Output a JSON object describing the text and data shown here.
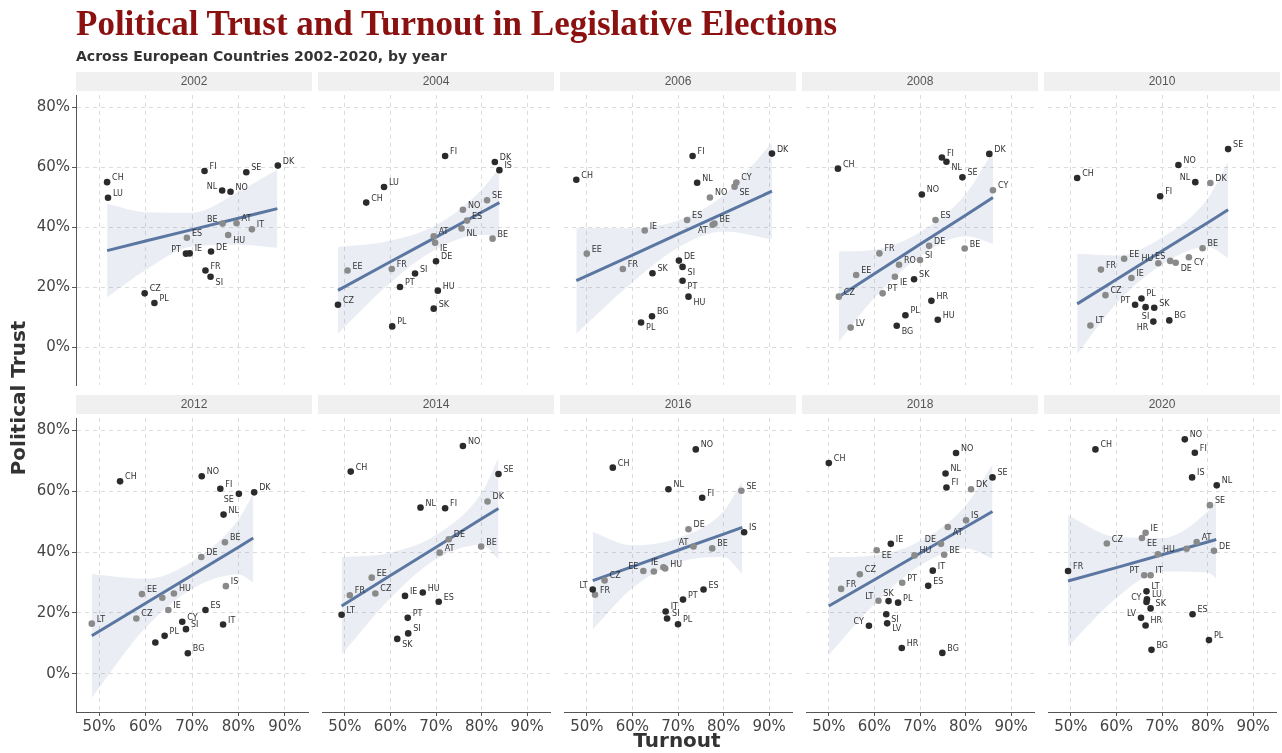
{
  "chart_data": [
    {
      "type": "other",
      "title": "Political Trust and Turnout in Legislative Elections",
      "subtitle": "Across European Countries 2002-2020, by year",
      "xlabel": "Turnout",
      "ylabel": "Political Trust"
    },
    {
      "type": "scatter",
      "title": "2002",
      "xlim": [
        45,
        95
      ],
      "ylim": [
        -12.5,
        84
      ],
      "xticks": [
        {
          "value": 50,
          "label": null
        },
        {
          "value": 60,
          "label": null
        },
        {
          "value": 70,
          "label": null
        },
        {
          "value": 80,
          "label": null
        },
        {
          "value": 90,
          "label": null
        }
      ],
      "yticks": [
        {
          "value": 0,
          "label": "0%"
        },
        {
          "value": 20,
          "label": "20%"
        },
        {
          "value": 40,
          "label": "40%"
        },
        {
          "value": 60,
          "label": "60%"
        },
        {
          "value": 80,
          "label": "80%"
        }
      ],
      "grid": true,
      "tick_labels": "y",
      "series": [
        {
          "type": "line",
          "color": "#5b77a1",
          "x": [
            51.7,
            60,
            70,
            80,
            88.4
          ],
          "values": [
            32.2,
            35.4,
            39.2,
            43.0,
            46.2
          ],
          "lower": [
            16.7,
            25.8,
            33.6,
            34.2,
            33.2
          ],
          "upper": [
            47.7,
            45.0,
            44.8,
            51.8,
            59.2
          ]
        },
        {
          "type": "scatter",
          "marker": "circle",
          "color": "#2b2b2b",
          "x": [
            51.7,
            51.9,
            72.7,
            81.7,
            88.5,
            76.5,
            78.3,
            68.7,
            69.5,
            74.1,
            72.9,
            74.0,
            59.8,
            61.9
          ],
          "values": [
            55.0,
            49.8,
            58.7,
            58.3,
            60.5,
            52.2,
            51.8,
            31.2,
            31.3,
            31.9,
            25.6,
            23.5,
            18.0,
            14.8
          ],
          "value_labels": [
            "CH",
            "LU",
            "FI",
            "SE",
            "DK",
            "NL",
            "NO",
            "PT",
            "IE",
            "DE",
            "FR",
            "SI",
            "CZ",
            "PL"
          ]
        },
        {
          "type": "scatter",
          "marker": "circle",
          "color": "#8a8a8a",
          "x": [
            76.6,
            79.6,
            82.9,
            77.8,
            68.9
          ],
          "values": [
            41.2,
            41.3,
            39.3,
            37.4,
            36.5
          ],
          "value_labels": [
            "BE",
            "AT",
            "IT",
            "HU",
            "ES"
          ]
        }
      ]
    },
    {
      "type": "scatter",
      "title": "2004",
      "xlim": [
        45,
        95
      ],
      "ylim": [
        -12.5,
        84
      ],
      "xticks": [
        {
          "value": 50,
          "label": null
        },
        {
          "value": 60,
          "label": null
        },
        {
          "value": 70,
          "label": null
        },
        {
          "value": 80,
          "label": null
        },
        {
          "value": 90,
          "label": null
        }
      ],
      "yticks": [
        {
          "value": 0,
          "label": null
        },
        {
          "value": 20,
          "label": null
        },
        {
          "value": 40,
          "label": null
        },
        {
          "value": 60,
          "label": null
        },
        {
          "value": 80,
          "label": null
        }
      ],
      "grid": true,
      "tick_labels": false,
      "series": [
        {
          "type": "line",
          "color": "#5b77a1",
          "x": [
            48.5,
            60,
            70,
            80,
            83.9
          ],
          "values": [
            19.0,
            28.5,
            36.7,
            45.0,
            48.2
          ],
          "lower": [
            4.6,
            21.5,
            32.7,
            37.5,
            36.6
          ],
          "upper": [
            33.4,
            35.5,
            40.7,
            52.5,
            59.8
          ]
        },
        {
          "type": "scatter",
          "marker": "circle",
          "color": "#2b2b2b",
          "x": [
            72.0,
            82.9,
            83.9,
            58.6,
            54.7,
            70.0,
            65.4,
            62.1,
            70.4,
            48.5,
            69.5,
            60.4
          ],
          "values": [
            63.7,
            61.7,
            59.0,
            53.4,
            48.2,
            28.7,
            24.6,
            20.1,
            18.9,
            14.2,
            12.9,
            7.0
          ],
          "value_labels": [
            "FI",
            "DK",
            "IS",
            "LU",
            "CH",
            "DE",
            "SI",
            "PT",
            "HU",
            "CZ",
            "SK",
            "PL"
          ]
        },
        {
          "type": "scatter",
          "marker": "circle",
          "color": "#8a8a8a",
          "x": [
            81.2,
            75.9,
            76.8,
            75.6,
            69.5,
            69.8,
            82.4,
            60.3,
            50.6
          ],
          "values": [
            49.0,
            45.8,
            42.2,
            39.6,
            37.0,
            34.8,
            36.2,
            26.1,
            25.6
          ],
          "value_labels": [
            "SE",
            "NO",
            "ES",
            "NL",
            "AT",
            "IE",
            "BE",
            "FR",
            "EE"
          ]
        }
      ]
    },
    {
      "type": "scatter",
      "title": "2006",
      "xlim": [
        45,
        95
      ],
      "ylim": [
        -12.5,
        84
      ],
      "xticks": [
        {
          "value": 50,
          "label": null
        },
        {
          "value": 60,
          "label": null
        },
        {
          "value": 70,
          "label": null
        },
        {
          "value": 80,
          "label": null
        },
        {
          "value": 90,
          "label": null
        }
      ],
      "yticks": [
        {
          "value": 0,
          "label": null
        },
        {
          "value": 20,
          "label": null
        },
        {
          "value": 40,
          "label": null
        },
        {
          "value": 60,
          "label": null
        },
        {
          "value": 80,
          "label": null
        }
      ],
      "grid": true,
      "tick_labels": false,
      "series": [
        {
          "type": "line",
          "color": "#5b77a1",
          "x": [
            47.7,
            60,
            70,
            80,
            90.6
          ],
          "values": [
            22.2,
            30.7,
            37.7,
            44.6,
            52.0
          ],
          "lower": [
            4.6,
            21.7,
            33.2,
            38.6,
            36.0
          ],
          "upper": [
            39.8,
            39.7,
            42.2,
            50.6,
            68.0
          ]
        },
        {
          "type": "scatter",
          "marker": "circle",
          "color": "#2b2b2b",
          "x": [
            47.7,
            73.2,
            90.6,
            74.2,
            64.4,
            70.2,
            71.0,
            71.0,
            72.3,
            64.3,
            61.9
          ],
          "values": [
            55.8,
            63.7,
            64.5,
            54.8,
            24.7,
            28.9,
            26.8,
            22.2,
            16.9,
            10.4,
            8.3
          ],
          "value_labels": [
            "CH",
            "FI",
            "DK",
            "NL",
            "SK",
            "DE",
            "SI",
            "PT",
            "HU",
            "BG",
            "PL"
          ]
        },
        {
          "type": "scatter",
          "marker": "circle",
          "color": "#8a8a8a",
          "x": [
            82.8,
            82.4,
            77.0,
            72.0,
            77.6,
            78.0,
            62.7,
            50.0,
            57.9
          ],
          "values": [
            54.9,
            53.5,
            49.9,
            42.4,
            40.8,
            41.2,
            38.9,
            31.2,
            26.1
          ],
          "value_labels": [
            "CY",
            "SE",
            "NO",
            "ES",
            "AT",
            "BE",
            "IE",
            "EE",
            "FR"
          ]
        }
      ]
    },
    {
      "type": "scatter",
      "title": "2008",
      "xlim": [
        45,
        95
      ],
      "ylim": [
        -12.5,
        84
      ],
      "xticks": [
        {
          "value": 50,
          "label": null
        },
        {
          "value": 60,
          "label": null
        },
        {
          "value": 70,
          "label": null
        },
        {
          "value": 80,
          "label": null
        },
        {
          "value": 90,
          "label": null
        }
      ],
      "yticks": [
        {
          "value": 0,
          "label": null
        },
        {
          "value": 20,
          "label": null
        },
        {
          "value": 40,
          "label": null
        },
        {
          "value": 60,
          "label": null
        },
        {
          "value": 80,
          "label": null
        }
      ],
      "grid": true,
      "tick_labels": false,
      "series": [
        {
          "type": "line",
          "color": "#5b77a1",
          "x": [
            52.2,
            60,
            70,
            80,
            86.0
          ],
          "values": [
            16.9,
            24.5,
            34.3,
            44.0,
            49.9
          ],
          "lower": [
            1.9,
            16.5,
            30.3,
            37.0,
            34.5
          ],
          "upper": [
            31.9,
            32.5,
            38.3,
            51.0,
            65.3
          ]
        },
        {
          "type": "scatter",
          "marker": "circle",
          "color": "#2b2b2b",
          "x": [
            52.0,
            74.8,
            75.8,
            85.2,
            79.3,
            70.4,
            68.7,
            72.5,
            73.9,
            66.8,
            64.9
          ],
          "values": [
            59.5,
            63.2,
            61.8,
            64.4,
            56.6,
            50.9,
            22.7,
            15.5,
            9.2,
            10.7,
            7.2
          ],
          "value_labels": [
            "CH",
            "FI",
            "NL",
            "DK",
            "SE",
            "NO",
            "SK",
            "HR",
            "HU",
            "PL",
            "BG"
          ]
        },
        {
          "type": "scatter",
          "marker": "circle",
          "color": "#8a8a8a",
          "x": [
            86.0,
            73.4,
            72.0,
            79.8,
            61.1,
            70.0,
            65.4,
            64.5,
            56.0,
            52.2,
            61.8,
            54.8
          ],
          "values": [
            52.3,
            42.4,
            33.8,
            32.9,
            31.3,
            29.1,
            27.5,
            23.5,
            24.1,
            16.9,
            18.0,
            6.6
          ],
          "value_labels": [
            "CY",
            "ES",
            "DE",
            "BE",
            "FR",
            "SI",
            "RO",
            "IE",
            "EE",
            "CZ",
            "PT",
            "LV"
          ]
        }
      ]
    },
    {
      "type": "scatter",
      "title": "2010",
      "xlim": [
        45,
        95
      ],
      "ylim": [
        -12.5,
        84
      ],
      "xticks": [
        {
          "value": 50,
          "label": null
        },
        {
          "value": 60,
          "label": null
        },
        {
          "value": 70,
          "label": null
        },
        {
          "value": 80,
          "label": null
        },
        {
          "value": 90,
          "label": null
        }
      ],
      "yticks": [
        {
          "value": 0,
          "label": null
        },
        {
          "value": 20,
          "label": null
        },
        {
          "value": 40,
          "label": null
        },
        {
          "value": 60,
          "label": null
        },
        {
          "value": 80,
          "label": null
        }
      ],
      "grid": true,
      "tick_labels": false,
      "series": [
        {
          "type": "line",
          "color": "#5b77a1",
          "x": [
            51.4,
            60,
            70,
            80,
            84.5
          ],
          "values": [
            14.5,
            22.6,
            32.1,
            41.5,
            45.8
          ],
          "lower": [
            -2.2,
            14.6,
            27.6,
            33.5,
            29.8
          ],
          "upper": [
            31.2,
            30.6,
            36.6,
            49.5,
            61.8
          ]
        },
        {
          "type": "scatter",
          "marker": "circle",
          "color": "#2b2b2b",
          "x": [
            51.4,
            84.5,
            73.6,
            77.3,
            69.6,
            65.5,
            64.1,
            66.4,
            68.3,
            68.1,
            71.6
          ],
          "values": [
            56.4,
            66.0,
            60.7,
            55.0,
            50.3,
            16.3,
            14.2,
            13.4,
            13.2,
            8.6,
            9.0
          ],
          "value_labels": [
            "CH",
            "SE",
            "NO",
            "NL",
            "FI",
            "PL",
            "PT",
            "SI",
            "SK",
            "HR",
            "BG"
          ]
        },
        {
          "type": "scatter",
          "marker": "circle",
          "color": "#8a8a8a",
          "x": [
            80.6,
            78.9,
            75.9,
            69.2,
            71.8,
            73.0,
            61.7,
            56.6,
            63.3,
            57.6,
            54.3
          ],
          "values": [
            54.7,
            33.0,
            30.0,
            28.0,
            28.8,
            28.2,
            29.5,
            25.9,
            23.1,
            17.4,
            7.3
          ],
          "value_labels": [
            "DK",
            "BE",
            "CY",
            "HU",
            "ES",
            "DE",
            "EE",
            "FR",
            "IE",
            "CZ",
            "LT"
          ]
        }
      ]
    },
    {
      "type": "scatter",
      "title": "2012",
      "xlim": [
        45,
        95
      ],
      "ylim": [
        -12.5,
        84
      ],
      "xticks": [
        {
          "value": 50,
          "label": "50%"
        },
        {
          "value": 60,
          "label": "60%"
        },
        {
          "value": 70,
          "label": "70%"
        },
        {
          "value": 80,
          "label": "80%"
        },
        {
          "value": 90,
          "label": "90%"
        }
      ],
      "yticks": [
        {
          "value": 0,
          "label": "0%"
        },
        {
          "value": 20,
          "label": "20%"
        },
        {
          "value": 40,
          "label": "40%"
        },
        {
          "value": 60,
          "label": "60%"
        },
        {
          "value": 80,
          "label": "80%"
        }
      ],
      "grid": true,
      "series": [
        {
          "type": "line",
          "color": "#5b77a1",
          "x": [
            48.4,
            60,
            70,
            80,
            83.2
          ],
          "values": [
            12.5,
            23.2,
            32.4,
            41.6,
            44.6
          ],
          "lower": [
            -7.8,
            15.2,
            27.9,
            32.6,
            30.0
          ],
          "upper": [
            32.8,
            31.2,
            36.9,
            50.6,
            59.2
          ]
        },
        {
          "type": "scatter",
          "marker": "circle",
          "color": "#2b2b2b",
          "x": [
            54.5,
            72.1,
            76.1,
            80.1,
            83.4,
            76.8,
            72.9,
            67.9,
            68.7,
            76.7,
            64.1,
            62.1,
            69.1
          ],
          "values": [
            63.2,
            64.9,
            60.8,
            59.1,
            59.6,
            52.3,
            21.0,
            17.1,
            14.7,
            16.2,
            12.5,
            10.3,
            6.8
          ],
          "value_labels": [
            "CH",
            "NO",
            "FI",
            "SE",
            "DK",
            "NL",
            "ES",
            "CY",
            "SI",
            "IT",
            "PL",
            null,
            "BG"
          ]
        },
        {
          "type": "scatter",
          "marker": "circle",
          "color": "#8a8a8a",
          "x": [
            77.1,
            72.0,
            77.3,
            59.2,
            66.1,
            63.6,
            64.9,
            58.0,
            48.4
          ],
          "values": [
            43.2,
            38.4,
            28.8,
            26.2,
            26.4,
            25.0,
            21.0,
            18.2,
            16.5
          ],
          "value_labels": [
            "BE",
            "DE",
            "IS",
            "EE",
            "HU",
            null,
            "IE",
            "CZ",
            "LT"
          ]
        }
      ]
    },
    {
      "type": "scatter",
      "title": "2014",
      "xlim": [
        45,
        95
      ],
      "ylim": [
        -12.5,
        84
      ],
      "xticks": [
        {
          "value": 50,
          "label": "50%"
        },
        {
          "value": 60,
          "label": "60%"
        },
        {
          "value": 70,
          "label": "70%"
        },
        {
          "value": 80,
          "label": "80%"
        },
        {
          "value": 90,
          "label": "90%"
        }
      ],
      "yticks": [
        {
          "value": 0,
          "label": null
        },
        {
          "value": 20,
          "label": null
        },
        {
          "value": 40,
          "label": null
        },
        {
          "value": 60,
          "label": null
        },
        {
          "value": 80,
          "label": null
        }
      ],
      "grid": true,
      "tick_labels": "x",
      "series": [
        {
          "type": "line",
          "color": "#5b77a1",
          "x": [
            49.3,
            60,
            70,
            80,
            83.7
          ],
          "values": [
            22.3,
            32.3,
            41.6,
            50.9,
            54.3
          ],
          "lower": [
            6.3,
            24.8,
            37.6,
            42.4,
            37.7
          ],
          "upper": [
            38.3,
            39.8,
            45.6,
            59.4,
            70.9
          ]
        },
        {
          "type": "scatter",
          "marker": "circle",
          "color": "#2b2b2b",
          "x": [
            75.9,
            51.3,
            83.7,
            66.6,
            72.0,
            63.2,
            67.1,
            70.6,
            63.8,
            49.3,
            63.9,
            61.5
          ],
          "values": [
            74.8,
            66.4,
            65.6,
            54.6,
            54.4,
            25.6,
            26.7,
            23.7,
            18.4,
            19.4,
            13.3,
            11.5
          ],
          "value_labels": [
            "NO",
            "CH",
            "SE",
            "NL",
            "FI",
            "IE",
            "HU",
            "ES",
            "PT",
            "LT",
            "SI",
            "SK"
          ]
        },
        {
          "type": "scatter",
          "marker": "circle",
          "color": "#8a8a8a",
          "x": [
            81.3,
            72.8,
            79.9,
            70.8,
            55.9,
            51.1,
            56.7
          ],
          "values": [
            56.6,
            44.2,
            41.8,
            39.8,
            31.6,
            25.8,
            26.4
          ],
          "value_labels": [
            "DK",
            "DE",
            "BE",
            "AT",
            "EE",
            "FR",
            "CZ"
          ]
        }
      ]
    },
    {
      "type": "scatter",
      "title": "2016",
      "xlim": [
        45,
        95
      ],
      "ylim": [
        -12.5,
        84
      ],
      "xticks": [
        {
          "value": 50,
          "label": "50%"
        },
        {
          "value": 60,
          "label": "60%"
        },
        {
          "value": 70,
          "label": "70%"
        },
        {
          "value": 80,
          "label": "80%"
        },
        {
          "value": 90,
          "label": "90%"
        }
      ],
      "yticks": [
        {
          "value": 0,
          "label": null
        },
        {
          "value": 20,
          "label": null
        },
        {
          "value": 40,
          "label": null
        },
        {
          "value": 60,
          "label": null
        },
        {
          "value": 80,
          "label": null
        }
      ],
      "grid": true,
      "tick_labels": "x",
      "series": [
        {
          "type": "line",
          "color": "#5b77a1",
          "x": [
            51.3,
            60,
            70,
            80,
            84.1
          ],
          "values": [
            30.6,
            35.2,
            40.6,
            45.9,
            48.1
          ],
          "lower": [
            14.6,
            28.2,
            36.6,
            38.4,
            32.9
          ],
          "upper": [
            46.6,
            42.2,
            44.6,
            53.4,
            63.3
          ]
        },
        {
          "type": "scatter",
          "marker": "circle",
          "color": "#2b2b2b",
          "x": [
            73.9,
            55.7,
            67.9,
            75.3,
            84.5,
            51.3,
            75.6,
            71.1,
            67.3,
            67.6,
            70.0
          ],
          "values": [
            73.7,
            67.7,
            60.6,
            57.8,
            46.5,
            27.7,
            27.7,
            24.4,
            20.5,
            18.2,
            16.3
          ],
          "value_labels": [
            "NO",
            "CH",
            "NL",
            "FI",
            "IS",
            "LT",
            "ES",
            "PT",
            "IT",
            "SI",
            "PL"
          ]
        },
        {
          "type": "scatter",
          "marker": "circle",
          "color": "#8a8a8a",
          "x": [
            83.9,
            72.3,
            73.4,
            77.5,
            62.4,
            64.7,
            66.8,
            67.2,
            53.9,
            51.8
          ],
          "values": [
            60.1,
            47.5,
            41.8,
            41.2,
            33.8,
            33.6,
            35.0,
            34.6,
            30.7,
            26.0
          ],
          "value_labels": [
            "SE",
            "DE",
            "AT",
            "BE",
            "EE",
            null,
            "IE",
            "HU",
            "CZ",
            "FR"
          ]
        }
      ]
    },
    {
      "type": "scatter",
      "title": "2018",
      "xlim": [
        45,
        95
      ],
      "ylim": [
        -12.5,
        84
      ],
      "xticks": [
        {
          "value": 50,
          "label": "50%"
        },
        {
          "value": 60,
          "label": "60%"
        },
        {
          "value": 70,
          "label": "70%"
        },
        {
          "value": 80,
          "label": "80%"
        },
        {
          "value": 90,
          "label": "90%"
        }
      ],
      "yticks": [
        {
          "value": 0,
          "label": null
        },
        {
          "value": 20,
          "label": null
        },
        {
          "value": 40,
          "label": null
        },
        {
          "value": 60,
          "label": null
        },
        {
          "value": 80,
          "label": null
        }
      ],
      "grid": true,
      "tick_labels": "x",
      "series": [
        {
          "type": "line",
          "color": "#5b77a1",
          "x": [
            50.0,
            60,
            70,
            80,
            85.9
          ],
          "values": [
            22.3,
            30.9,
            39.6,
            48.2,
            53.3
          ],
          "lower": [
            6.3,
            22.9,
            35.6,
            41.2,
            37.9
          ],
          "upper": [
            38.3,
            38.9,
            43.6,
            55.2,
            68.7
          ]
        },
        {
          "type": "scatter",
          "marker": "circle",
          "color": "#2b2b2b",
          "x": [
            77.9,
            50.0,
            85.9,
            75.6,
            75.8,
            63.6,
            72.8,
            71.8,
            63.1,
            65.2,
            62.6,
            62.8,
            58.8,
            66.0,
            74.9
          ],
          "values": [
            72.5,
            69.2,
            64.5,
            65.8,
            61.2,
            42.7,
            33.9,
            28.9,
            23.9,
            23.4,
            19.6,
            16.6,
            15.8,
            8.5,
            6.9
          ],
          "value_labels": [
            "NO",
            "CH",
            "SE",
            "NL",
            "FI",
            "IE",
            "IT",
            "ES",
            "SK",
            "PL",
            "SI",
            "LV",
            "CY",
            "HR",
            "BG"
          ]
        },
        {
          "type": "scatter",
          "marker": "circle",
          "color": "#8a8a8a",
          "x": [
            81.2,
            80.1,
            76.1,
            60.5,
            74.6,
            75.3,
            68.8,
            56.8,
            66.1,
            52.7,
            60.9
          ],
          "values": [
            60.6,
            50.4,
            48.2,
            40.6,
            42.7,
            39.1,
            38.9,
            32.7,
            29.9,
            27.9,
            24.0
          ],
          "value_labels": [
            "DK",
            "IS",
            "AT",
            "EE",
            "DE",
            "BE",
            "HU",
            "CZ",
            "PT",
            "FR",
            "LT"
          ]
        }
      ]
    },
    {
      "type": "scatter",
      "title": "2020",
      "xlim": [
        45,
        95
      ],
      "ylim": [
        -12.5,
        84
      ],
      "xticks": [
        {
          "value": 50,
          "label": "50%"
        },
        {
          "value": 60,
          "label": "60%"
        },
        {
          "value": 70,
          "label": "70%"
        },
        {
          "value": 80,
          "label": "80%"
        },
        {
          "value": 90,
          "label": "90%"
        }
      ],
      "yticks": [
        {
          "value": 0,
          "label": null
        },
        {
          "value": 20,
          "label": null
        },
        {
          "value": 40,
          "label": null
        },
        {
          "value": 60,
          "label": null
        },
        {
          "value": 80,
          "label": null
        }
      ],
      "grid": true,
      "tick_labels": "x",
      "series": [
        {
          "type": "line",
          "color": "#5b77a1",
          "x": [
            49.4,
            60,
            70,
            80,
            81.9
          ],
          "values": [
            30.5,
            34.9,
            39.1,
            43.3,
            44.1
          ],
          "lower": [
            9.0,
            24.9,
            33.6,
            33.3,
            31.4
          ],
          "upper": [
            52.0,
            44.9,
            44.6,
            53.3,
            56.8
          ]
        },
        {
          "type": "scatter",
          "marker": "circle",
          "color": "#2b2b2b",
          "x": [
            75.0,
            55.4,
            77.2,
            76.6,
            82.0,
            49.4,
            66.6,
            66.7,
            66.6,
            67.5,
            65.4,
            66.4,
            76.7,
            80.3,
            67.7
          ],
          "values": [
            77.0,
            73.7,
            72.6,
            64.5,
            61.9,
            33.8,
            27.1,
            24.5,
            23.6,
            21.5,
            18.4,
            15.9,
            19.6,
            11.1,
            7.9
          ],
          "value_labels": [
            "NO",
            "CH",
            "FI",
            "IS",
            "NL",
            "FR",
            "LT",
            "LU",
            "CY",
            "SK",
            "LV",
            "HR",
            "ES",
            "PL",
            "BG"
          ]
        },
        {
          "type": "scatter",
          "marker": "circle",
          "color": "#8a8a8a",
          "x": [
            80.5,
            66.4,
            65.6,
            57.9,
            77.6,
            75.4,
            81.4,
            69.1,
            66.1,
            67.5
          ],
          "values": [
            55.4,
            46.3,
            44.6,
            42.8,
            43.3,
            41.1,
            40.4,
            39.3,
            32.4,
            32.4
          ],
          "value_labels": [
            "SE",
            "IE",
            "EE",
            "CZ",
            "AT",
            null,
            "DE",
            "HU",
            "PT",
            "IT"
          ]
        }
      ]
    }
  ]
}
